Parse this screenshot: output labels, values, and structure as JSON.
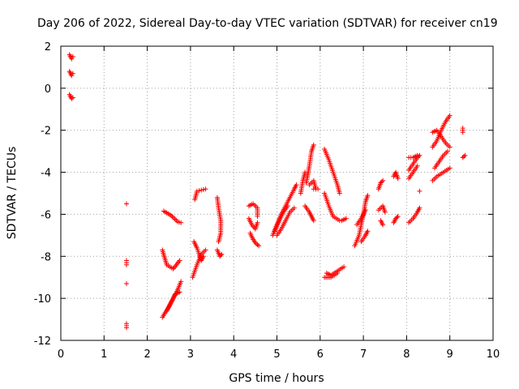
{
  "chart_data": {
    "type": "scatter",
    "title": "Day 206 of 2022, Sidereal Day-to-day VTEC variation (SDTVAR) for receiver cn19",
    "xlabel": "GPS time / hours",
    "ylabel": "SDTVAR / TECUs",
    "xlim": [
      0,
      10
    ],
    "ylim": [
      -12,
      2
    ],
    "xticks": [
      0,
      1,
      2,
      3,
      4,
      5,
      6,
      7,
      8,
      9,
      10
    ],
    "yticks": [
      -12,
      -10,
      -8,
      -6,
      -4,
      -2,
      0,
      2
    ],
    "grid": true,
    "marker": "+",
    "series_color": "#ff0000",
    "tracks": [
      [
        [
          0.2,
          1.6
        ],
        [
          0.25,
          1.4
        ],
        [
          0.28,
          1.5
        ]
      ],
      [
        [
          0.2,
          0.8
        ],
        [
          0.25,
          0.6
        ],
        [
          0.28,
          0.7
        ]
      ],
      [
        [
          0.2,
          -0.3
        ],
        [
          0.25,
          -0.5
        ],
        [
          0.28,
          -0.45
        ]
      ],
      [
        [
          1.52,
          -5.5
        ]
      ],
      [
        [
          1.52,
          -8.2
        ],
        [
          1.52,
          -8.4
        ]
      ],
      [
        [
          1.52,
          -9.3
        ]
      ],
      [
        [
          1.52,
          -11.2
        ],
        [
          1.52,
          -11.4
        ]
      ],
      [
        [
          2.38,
          -5.85
        ],
        [
          2.55,
          -6.05
        ],
        [
          2.7,
          -6.35
        ],
        [
          2.78,
          -6.4
        ]
      ],
      [
        [
          2.35,
          -7.7
        ],
        [
          2.45,
          -8.4
        ],
        [
          2.6,
          -8.6
        ],
        [
          2.75,
          -8.2
        ]
      ],
      [
        [
          2.35,
          -10.9
        ],
        [
          2.5,
          -10.4
        ],
        [
          2.6,
          -10.0
        ],
        [
          2.7,
          -9.6
        ],
        [
          2.78,
          -9.2
        ]
      ],
      [
        [
          2.45,
          -10.6
        ],
        [
          2.55,
          -10.2
        ],
        [
          2.65,
          -9.8
        ],
        [
          2.75,
          -9.7
        ]
      ],
      [
        [
          3.05,
          -9.0
        ],
        [
          3.15,
          -8.4
        ],
        [
          3.25,
          -7.9
        ],
        [
          3.35,
          -7.7
        ]
      ],
      [
        [
          3.08,
          -7.3
        ],
        [
          3.15,
          -7.6
        ],
        [
          3.25,
          -8.2
        ],
        [
          3.3,
          -8.0
        ]
      ],
      [
        [
          3.1,
          -5.3
        ],
        [
          3.15,
          -4.9
        ],
        [
          3.25,
          -4.85
        ],
        [
          3.35,
          -4.8
        ]
      ],
      [
        [
          3.62,
          -5.2
        ],
        [
          3.65,
          -5.7
        ],
        [
          3.7,
          -6.3
        ],
        [
          3.7,
          -6.9
        ],
        [
          3.65,
          -7.3
        ]
      ],
      [
        [
          3.62,
          -7.7
        ],
        [
          3.68,
          -8.0
        ],
        [
          3.72,
          -7.9
        ]
      ],
      [
        [
          4.35,
          -5.6
        ],
        [
          4.45,
          -5.5
        ],
        [
          4.55,
          -5.7
        ],
        [
          4.55,
          -6.1
        ]
      ],
      [
        [
          4.35,
          -6.2
        ],
        [
          4.42,
          -6.5
        ],
        [
          4.5,
          -6.7
        ],
        [
          4.55,
          -6.4
        ]
      ],
      [
        [
          4.38,
          -6.9
        ],
        [
          4.45,
          -7.2
        ],
        [
          4.52,
          -7.4
        ],
        [
          4.58,
          -7.5
        ]
      ],
      [
        [
          4.9,
          -7.0
        ],
        [
          5.0,
          -6.5
        ],
        [
          5.1,
          -6.0
        ],
        [
          5.2,
          -5.6
        ],
        [
          5.3,
          -5.2
        ],
        [
          5.4,
          -4.8
        ],
        [
          5.45,
          -4.6
        ]
      ],
      [
        [
          4.95,
          -6.8
        ],
        [
          5.05,
          -6.3
        ],
        [
          5.15,
          -5.9
        ],
        [
          5.25,
          -5.6
        ]
      ],
      [
        [
          5.0,
          -7.0
        ],
        [
          5.1,
          -6.7
        ],
        [
          5.2,
          -6.3
        ],
        [
          5.3,
          -5.9
        ],
        [
          5.4,
          -5.7
        ]
      ],
      [
        [
          5.55,
          -5.0
        ],
        [
          5.6,
          -4.4
        ],
        [
          5.65,
          -4.0
        ]
      ],
      [
        [
          5.65,
          -5.6
        ],
        [
          5.75,
          -5.9
        ],
        [
          5.8,
          -6.1
        ],
        [
          5.85,
          -6.3
        ]
      ],
      [
        [
          5.68,
          -4.5
        ],
        [
          5.75,
          -3.7
        ],
        [
          5.8,
          -3.0
        ],
        [
          5.85,
          -2.7
        ]
      ],
      [
        [
          5.75,
          -4.6
        ],
        [
          5.85,
          -4.4
        ],
        [
          5.9,
          -4.8
        ]
      ],
      [
        [
          5.85,
          -4.8
        ],
        [
          5.95,
          -4.8
        ]
      ],
      [
        [
          6.1,
          -2.9
        ],
        [
          6.2,
          -3.4
        ],
        [
          6.3,
          -4.0
        ],
        [
          6.4,
          -4.6
        ],
        [
          6.45,
          -5.0
        ]
      ],
      [
        [
          6.1,
          -5.0
        ],
        [
          6.2,
          -5.6
        ],
        [
          6.3,
          -6.1
        ],
        [
          6.45,
          -6.3
        ]
      ],
      [
        [
          6.15,
          -8.8
        ],
        [
          6.25,
          -8.9
        ],
        [
          6.4,
          -8.7
        ],
        [
          6.55,
          -8.5
        ]
      ],
      [
        [
          6.1,
          -9.0
        ],
        [
          6.25,
          -9.0
        ],
        [
          6.4,
          -8.8
        ]
      ],
      [
        [
          6.5,
          -6.3
        ],
        [
          6.6,
          -6.2
        ]
      ],
      [
        [
          6.8,
          -7.5
        ],
        [
          6.9,
          -7.0
        ],
        [
          7.0,
          -6.0
        ],
        [
          7.05,
          -5.4
        ],
        [
          7.1,
          -5.1
        ]
      ],
      [
        [
          6.85,
          -6.5
        ],
        [
          6.95,
          -6.2
        ],
        [
          7.05,
          -5.8
        ]
      ],
      [
        [
          6.95,
          -7.3
        ],
        [
          7.05,
          -7.0
        ],
        [
          7.1,
          -6.8
        ]
      ],
      [
        [
          7.35,
          -5.8
        ],
        [
          7.45,
          -5.6
        ],
        [
          7.5,
          -5.9
        ]
      ],
      [
        [
          7.35,
          -4.8
        ],
        [
          7.4,
          -4.5
        ],
        [
          7.45,
          -4.4
        ]
      ],
      [
        [
          7.4,
          -6.3
        ],
        [
          7.45,
          -6.5
        ]
      ],
      [
        [
          7.7,
          -6.4
        ],
        [
          7.75,
          -6.2
        ],
        [
          7.8,
          -6.1
        ]
      ],
      [
        [
          7.7,
          -4.2
        ],
        [
          7.75,
          -4.0
        ],
        [
          7.8,
          -4.3
        ]
      ],
      [
        [
          8.05,
          -6.4
        ],
        [
          8.15,
          -6.2
        ],
        [
          8.25,
          -5.9
        ],
        [
          8.3,
          -5.7
        ]
      ],
      [
        [
          8.05,
          -3.9
        ],
        [
          8.15,
          -3.6
        ],
        [
          8.25,
          -3.3
        ],
        [
          8.3,
          -3.2
        ]
      ],
      [
        [
          8.05,
          -3.3
        ],
        [
          8.15,
          -3.3
        ],
        [
          8.25,
          -3.2
        ]
      ],
      [
        [
          8.05,
          -4.3
        ],
        [
          8.15,
          -4.0
        ],
        [
          8.25,
          -3.7
        ]
      ],
      [
        [
          8.3,
          -4.9
        ]
      ],
      [
        [
          8.6,
          -4.4
        ],
        [
          8.7,
          -4.2
        ],
        [
          8.85,
          -4.0
        ],
        [
          9.0,
          -3.8
        ]
      ],
      [
        [
          8.6,
          -2.1
        ],
        [
          8.7,
          -2.0
        ],
        [
          8.8,
          -2.3
        ],
        [
          8.9,
          -2.6
        ],
        [
          9.0,
          -2.8
        ]
      ],
      [
        [
          8.6,
          -2.8
        ],
        [
          8.7,
          -2.5
        ],
        [
          8.8,
          -2.0
        ],
        [
          8.9,
          -1.6
        ],
        [
          9.0,
          -1.3
        ]
      ],
      [
        [
          8.65,
          -3.8
        ],
        [
          8.75,
          -3.5
        ],
        [
          8.85,
          -3.2
        ],
        [
          8.95,
          -3.0
        ]
      ],
      [
        [
          9.3,
          -1.9
        ],
        [
          9.3,
          -2.1
        ]
      ],
      [
        [
          9.3,
          -3.3
        ],
        [
          9.35,
          -3.2
        ]
      ]
    ]
  }
}
